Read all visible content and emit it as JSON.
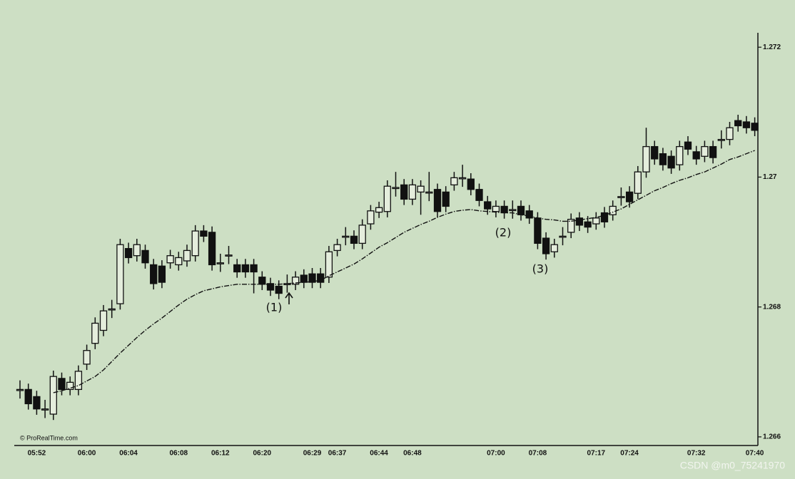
{
  "chart_data": {
    "type": "candlestick",
    "source": "© ProRealTime.com",
    "watermark": "CSDN @m0_75241970",
    "annotations": [
      "(1)",
      "(2)",
      "(3)"
    ],
    "up_color": "#e4eddc",
    "down_color": "#111111",
    "line_color": "#111111",
    "grid": false,
    "ylim": [
      1.2659,
      1.2722
    ],
    "yticks": [
      1.266,
      1.268,
      1.27,
      1.272
    ],
    "categories": [
      null,
      null,
      "05:52",
      null,
      null,
      null,
      null,
      null,
      "06:00",
      null,
      null,
      null,
      null,
      "06:04",
      null,
      null,
      null,
      null,
      null,
      "06:08",
      null,
      null,
      null,
      null,
      "06:12",
      null,
      null,
      null,
      null,
      "06:20",
      null,
      null,
      null,
      null,
      null,
      "06:29",
      null,
      null,
      "06:37",
      null,
      null,
      null,
      null,
      "06:44",
      null,
      null,
      null,
      "06:48",
      null,
      null,
      null,
      null,
      null,
      null,
      null,
      null,
      null,
      "07:00",
      null,
      null,
      null,
      null,
      "07:08",
      null,
      null,
      null,
      null,
      null,
      null,
      "07:17",
      null,
      null,
      null,
      "07:24",
      null,
      null,
      null,
      null,
      null,
      null,
      null,
      "07:32",
      null,
      null,
      null,
      null,
      null,
      null,
      "07:40"
    ],
    "open": [
      1.26673,
      1.26673,
      1.26662,
      1.26643,
      1.26635,
      1.2669,
      1.26673,
      1.26673,
      1.26712,
      1.26744,
      1.26764,
      1.26797,
      1.26805,
      1.2689,
      1.26879,
      1.26887,
      1.26865,
      1.26863,
      1.26868,
      1.26865,
      1.26871,
      1.26879,
      1.26917,
      1.26915,
      1.26868,
      1.2688,
      1.26865,
      1.26865,
      1.26865,
      1.26846,
      1.26836,
      1.26832,
      1.26836,
      1.26835,
      1.26849,
      1.26851,
      1.26851,
      1.26846,
      1.26887,
      1.26909,
      1.26909,
      1.26898,
      1.26928,
      1.26946,
      1.26947,
      1.26984,
      1.26988,
      1.26966,
      1.26977,
      1.26977,
      1.26981,
      1.26977,
      1.26988,
      1.26999,
      1.26997,
      1.26981,
      1.26962,
      1.26947,
      1.26955,
      1.2695,
      1.26955,
      1.26948,
      1.26937,
      1.26906,
      1.26885,
      1.26909,
      1.26915,
      1.26937,
      1.26931,
      1.26928,
      1.26945,
      1.26942,
      1.2697,
      1.26977,
      1.26975,
      1.27008,
      1.27047,
      1.27036,
      1.27032,
      1.27019,
      1.27054,
      1.27039,
      1.27032,
      1.27047,
      1.27058,
      1.27058,
      1.27087,
      1.27085,
      1.27083
    ],
    "high": [
      1.26687,
      1.26682,
      1.26671,
      1.26657,
      1.26702,
      1.26699,
      1.26693,
      1.2671,
      1.26742,
      1.26784,
      1.26803,
      1.26811,
      1.26905,
      1.26899,
      1.26905,
      1.26896,
      1.26874,
      1.26872,
      1.26888,
      1.26885,
      1.26896,
      1.26926,
      1.26926,
      1.26924,
      1.26882,
      1.26894,
      1.26874,
      1.26874,
      1.26874,
      1.26855,
      1.26845,
      1.26841,
      1.2685,
      1.26855,
      1.26858,
      1.2686,
      1.2686,
      1.26894,
      1.26905,
      1.26923,
      1.26918,
      1.26935,
      1.26957,
      1.26962,
      1.26995,
      1.27008,
      1.26997,
      1.26997,
      1.26995,
      1.27008,
      1.2699,
      1.26986,
      1.27008,
      1.27019,
      1.27006,
      1.2699,
      1.26971,
      1.26964,
      1.26964,
      1.26964,
      1.26964,
      1.26957,
      1.26946,
      1.26915,
      1.26905,
      1.26923,
      1.26944,
      1.26946,
      1.2694,
      1.26946,
      1.26954,
      1.26964,
      1.26984,
      1.26986,
      1.27017,
      1.27076,
      1.27056,
      1.27045,
      1.27041,
      1.27056,
      1.27063,
      1.27048,
      1.27056,
      1.27056,
      1.27072,
      1.27085,
      1.27096,
      1.27094,
      1.27092
    ],
    "low": [
      1.26659,
      1.26642,
      1.26634,
      1.26629,
      1.26626,
      1.26664,
      1.26664,
      1.26664,
      1.26703,
      1.26735,
      1.26755,
      1.26783,
      1.26796,
      1.26867,
      1.2687,
      1.26859,
      1.26827,
      1.26829,
      1.26859,
      1.26856,
      1.26862,
      1.2687,
      1.269,
      1.26856,
      1.26854,
      1.26866,
      1.26845,
      1.26845,
      1.26821,
      1.26826,
      1.26817,
      1.26812,
      1.26822,
      1.26826,
      1.26829,
      1.26829,
      1.26829,
      1.26837,
      1.26878,
      1.26895,
      1.26889,
      1.26889,
      1.26919,
      1.26937,
      1.26938,
      1.2697,
      1.26957,
      1.26957,
      1.26942,
      1.26963,
      1.26938,
      1.26946,
      1.26979,
      1.26985,
      1.26972,
      1.26955,
      1.26942,
      1.26938,
      1.26936,
      1.26936,
      1.26933,
      1.26928,
      1.26889,
      1.26873,
      1.26876,
      1.26895,
      1.26906,
      1.26917,
      1.26914,
      1.26919,
      1.26922,
      1.26933,
      1.26956,
      1.26953,
      1.26966,
      1.26999,
      1.27019,
      1.2701,
      1.27005,
      1.2701,
      1.27034,
      1.27019,
      1.27023,
      1.27021,
      1.27044,
      1.27049,
      1.2707,
      1.27067,
      1.27063
    ],
    "close": [
      1.26673,
      1.26651,
      1.26643,
      1.26643,
      1.26693,
      1.26673,
      1.26684,
      1.26701,
      1.26733,
      1.26775,
      1.26794,
      1.26797,
      1.26896,
      1.26876,
      1.26896,
      1.26868,
      1.26836,
      1.26838,
      1.26879,
      1.26876,
      1.26887,
      1.26917,
      1.26909,
      1.26865,
      1.26868,
      1.2688,
      1.26854,
      1.26854,
      1.26854,
      1.26835,
      1.26826,
      1.26821,
      1.26836,
      1.26846,
      1.26838,
      1.26838,
      1.26838,
      1.26885,
      1.26896,
      1.26909,
      1.26898,
      1.26926,
      1.26948,
      1.26953,
      1.26986,
      1.26984,
      1.26966,
      1.26988,
      1.26986,
      1.26977,
      1.26947,
      1.26955,
      1.26999,
      1.26999,
      1.26981,
      1.26964,
      1.26951,
      1.26955,
      1.26945,
      1.2695,
      1.26942,
      1.26937,
      1.26898,
      1.26882,
      1.26896,
      1.26909,
      1.26935,
      1.26926,
      1.26923,
      1.26937,
      1.26931,
      1.26955,
      1.2697,
      1.26962,
      1.27008,
      1.27047,
      1.27028,
      1.27019,
      1.27014,
      1.27047,
      1.27043,
      1.27028,
      1.27047,
      1.2703,
      1.27058,
      1.27076,
      1.27079,
      1.27076,
      1.27072
    ],
    "moving_average": [
      null,
      null,
      null,
      null,
      1.26668,
      1.26671,
      1.26675,
      1.26679,
      1.26686,
      1.26693,
      1.26703,
      1.26716,
      1.26729,
      1.26741,
      1.26753,
      1.26764,
      1.26774,
      1.26783,
      1.26793,
      1.26803,
      1.26812,
      1.26819,
      1.26825,
      1.26828,
      1.26831,
      1.26833,
      1.26835,
      1.26835,
      1.26835,
      1.26835,
      1.26835,
      1.26835,
      1.26836,
      1.26837,
      1.26838,
      1.26839,
      1.26841,
      1.26848,
      1.26854,
      1.2686,
      1.26866,
      1.26874,
      1.26883,
      1.26892,
      1.26899,
      1.26907,
      1.26915,
      1.26921,
      1.26927,
      1.26932,
      1.26938,
      1.26943,
      1.26947,
      1.26949,
      1.2695,
      1.26948,
      1.26947,
      1.26946,
      1.26945,
      1.26945,
      1.26942,
      1.2694,
      1.26937,
      1.26935,
      1.26934,
      1.26932,
      1.26932,
      1.26934,
      1.26936,
      1.26938,
      1.26941,
      1.26946,
      1.26951,
      1.26958,
      1.26965,
      1.26972,
      1.26979,
      1.26984,
      1.2699,
      1.26995,
      1.26999,
      1.27004,
      1.27008,
      1.27014,
      1.2702,
      1.27027,
      1.27031,
      1.27036,
      1.27041
    ]
  }
}
